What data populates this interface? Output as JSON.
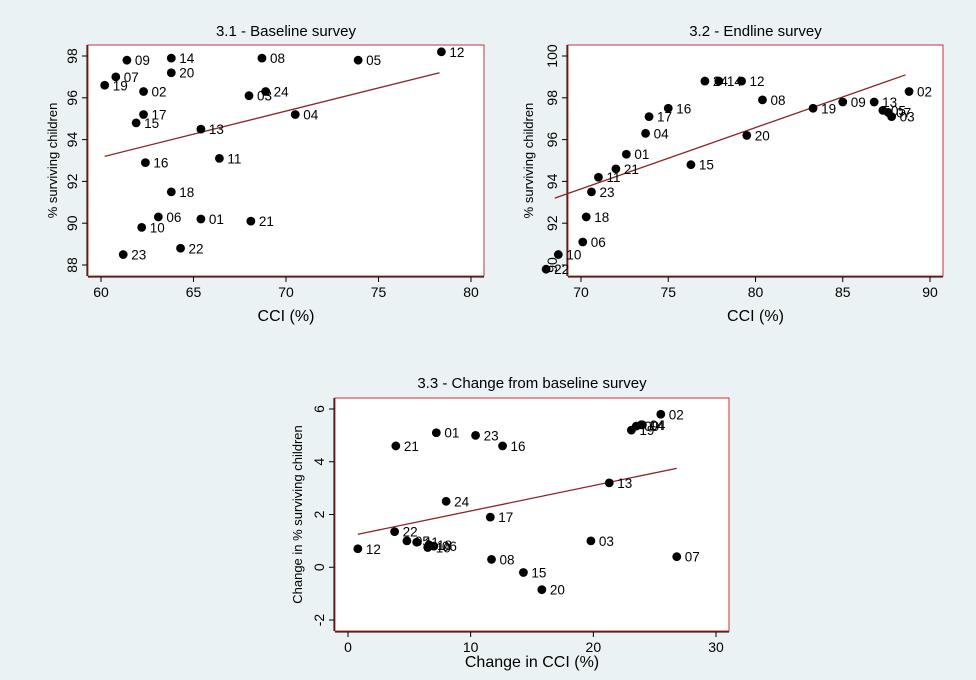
{
  "colors": {
    "background": "#eaf2f3",
    "plotArea": "#ffffff",
    "frame": "#cc3333",
    "fitLine": "#8b2323",
    "marker": "#000000"
  },
  "chart_data": [
    {
      "id": "p1",
      "type": "scatter",
      "title": "3.1 - Baseline survey",
      "xlabel": "CCI (%)",
      "ylabel": "% surviving children",
      "xlim": [
        60,
        80
      ],
      "ylim": [
        88,
        98
      ],
      "xticks": [
        60,
        65,
        70,
        75,
        80
      ],
      "yticks": [
        88,
        90,
        92,
        94,
        96,
        98
      ],
      "fit": [
        [
          60.2,
          93.2
        ],
        [
          78.3,
          97.2
        ]
      ],
      "points": [
        {
          "label": "01",
          "x": 65.4,
          "y": 90.2
        },
        {
          "label": "02",
          "x": 62.3,
          "y": 96.3
        },
        {
          "label": "03",
          "x": 68.0,
          "y": 96.1
        },
        {
          "label": "04",
          "x": 70.5,
          "y": 95.2
        },
        {
          "label": "05",
          "x": 73.9,
          "y": 97.8
        },
        {
          "label": "06",
          "x": 63.1,
          "y": 90.3
        },
        {
          "label": "07",
          "x": 60.8,
          "y": 97.0
        },
        {
          "label": "08",
          "x": 68.7,
          "y": 97.9
        },
        {
          "label": "09",
          "x": 61.4,
          "y": 97.8
        },
        {
          "label": "10",
          "x": 62.2,
          "y": 89.8
        },
        {
          "label": "11",
          "x": 66.4,
          "y": 93.1
        },
        {
          "label": "12",
          "x": 78.4,
          "y": 98.2
        },
        {
          "label": "13",
          "x": 65.4,
          "y": 94.5
        },
        {
          "label": "14",
          "x": 63.8,
          "y": 97.9
        },
        {
          "label": "15",
          "x": 61.9,
          "y": 94.8
        },
        {
          "label": "16",
          "x": 62.4,
          "y": 92.9
        },
        {
          "label": "17",
          "x": 62.3,
          "y": 95.2
        },
        {
          "label": "18",
          "x": 63.8,
          "y": 91.5
        },
        {
          "label": "19",
          "x": 60.2,
          "y": 96.6
        },
        {
          "label": "20",
          "x": 63.8,
          "y": 97.2
        },
        {
          "label": "21",
          "x": 68.1,
          "y": 90.1
        },
        {
          "label": "22",
          "x": 64.3,
          "y": 88.8
        },
        {
          "label": "23",
          "x": 61.2,
          "y": 88.5
        },
        {
          "label": "24",
          "x": 68.9,
          "y": 96.3
        }
      ]
    },
    {
      "id": "p2",
      "type": "scatter",
      "title": "3.2 - Endline survey",
      "xlabel": "CCI (%)",
      "ylabel": "% surviving children",
      "xlim": [
        70,
        90
      ],
      "ylim": [
        90,
        100
      ],
      "xticks": [
        70,
        75,
        80,
        85,
        90
      ],
      "yticks": [
        90,
        92,
        94,
        96,
        98,
        100
      ],
      "fit": [
        [
          68.5,
          93.2
        ],
        [
          88.6,
          99.1
        ]
      ],
      "points": [
        {
          "label": "01",
          "x": 72.6,
          "y": 95.3
        },
        {
          "label": "02",
          "x": 88.8,
          "y": 98.3
        },
        {
          "label": "03",
          "x": 87.8,
          "y": 97.1
        },
        {
          "label": "04",
          "x": 73.7,
          "y": 96.3
        },
        {
          "label": "05",
          "x": 87.3,
          "y": 97.4
        },
        {
          "label": "06",
          "x": 70.1,
          "y": 91.1
        },
        {
          "label": "07",
          "x": 87.6,
          "y": 97.3
        },
        {
          "label": "08",
          "x": 80.4,
          "y": 97.9
        },
        {
          "label": "09",
          "x": 85.0,
          "y": 97.8
        },
        {
          "label": "10",
          "x": 68.7,
          "y": 90.5
        },
        {
          "label": "11",
          "x": 71.0,
          "y": 94.2
        },
        {
          "label": "12",
          "x": 79.2,
          "y": 98.8
        },
        {
          "label": "13",
          "x": 86.8,
          "y": 97.8
        },
        {
          "label": "14",
          "x": 77.9,
          "y": 98.8
        },
        {
          "label": "15",
          "x": 76.3,
          "y": 94.8
        },
        {
          "label": "16",
          "x": 75.0,
          "y": 97.5
        },
        {
          "label": "17",
          "x": 73.9,
          "y": 97.1
        },
        {
          "label": "18",
          "x": 70.3,
          "y": 92.3
        },
        {
          "label": "19",
          "x": 83.3,
          "y": 97.5
        },
        {
          "label": "20",
          "x": 79.5,
          "y": 96.2
        },
        {
          "label": "21",
          "x": 72.0,
          "y": 94.6
        },
        {
          "label": "22",
          "x": 68.0,
          "y": 89.8
        },
        {
          "label": "23",
          "x": 70.6,
          "y": 93.5
        },
        {
          "label": "24",
          "x": 77.1,
          "y": 98.8
        }
      ]
    },
    {
      "id": "p3",
      "type": "scatter",
      "title": "3.3 - Change from baseline survey",
      "xlabel": "Change in CCI (%)",
      "ylabel": "Change in % surviving children",
      "xlim": [
        0,
        30
      ],
      "ylim": [
        -2,
        6
      ],
      "xticks": [
        0,
        10,
        20,
        30
      ],
      "yticks": [
        -2,
        0,
        2,
        4,
        6
      ],
      "fit": [
        [
          0.8,
          1.25
        ],
        [
          26.8,
          3.75
        ]
      ],
      "points": [
        {
          "label": "01",
          "x": 7.2,
          "y": 5.1
        },
        {
          "label": "02",
          "x": 25.5,
          "y": 5.8
        },
        {
          "label": "03",
          "x": 19.8,
          "y": 1.0
        },
        {
          "label": "04",
          "x": 24.0,
          "y": 5.4
        },
        {
          "label": "05",
          "x": 4.8,
          "y": 1.0
        },
        {
          "label": "06",
          "x": 7.0,
          "y": 0.8
        },
        {
          "label": "07",
          "x": 26.8,
          "y": 0.4
        },
        {
          "label": "08",
          "x": 11.7,
          "y": 0.3
        },
        {
          "label": "09",
          "x": 23.5,
          "y": 5.35
        },
        {
          "label": "10",
          "x": 6.5,
          "y": 0.75
        },
        {
          "label": "11",
          "x": 5.6,
          "y": 0.95
        },
        {
          "label": "12",
          "x": 0.8,
          "y": 0.7
        },
        {
          "label": "13",
          "x": 21.3,
          "y": 3.2
        },
        {
          "label": "14",
          "x": 23.9,
          "y": 5.4
        },
        {
          "label": "15",
          "x": 14.3,
          "y": -0.2
        },
        {
          "label": "16",
          "x": 12.6,
          "y": 4.6
        },
        {
          "label": "17",
          "x": 11.6,
          "y": 1.9
        },
        {
          "label": "18",
          "x": 6.6,
          "y": 0.85
        },
        {
          "label": "19",
          "x": 23.1,
          "y": 5.2
        },
        {
          "label": "20",
          "x": 15.8,
          "y": -0.85
        },
        {
          "label": "21",
          "x": 3.9,
          "y": 4.6
        },
        {
          "label": "22",
          "x": 3.8,
          "y": 1.35
        },
        {
          "label": "23",
          "x": 10.4,
          "y": 5.0
        },
        {
          "label": "24",
          "x": 8.0,
          "y": 2.5
        }
      ]
    }
  ]
}
